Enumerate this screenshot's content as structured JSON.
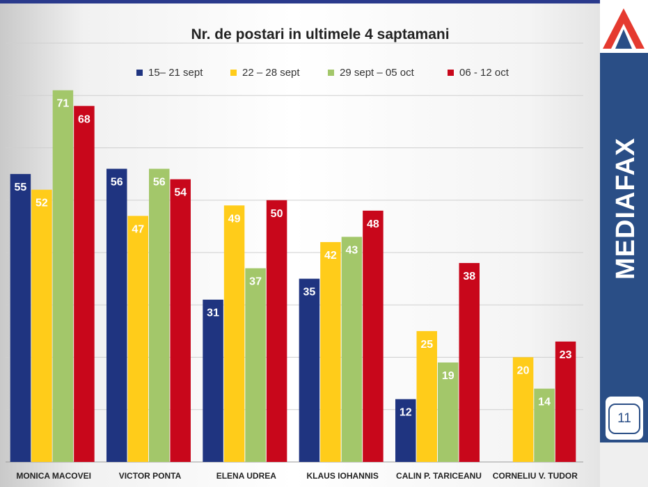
{
  "slide": {
    "brand": "MEDIAFAX",
    "page_number": "11"
  },
  "chart_data": {
    "type": "bar",
    "title": "Nr. de postari in ultimele 4 saptamani",
    "xlabel": "",
    "ylabel": "",
    "ylim": [
      0,
      80
    ],
    "grid": true,
    "legend_position": "top",
    "categories": [
      "MONICA  MACOVEI",
      "VICTOR PONTA",
      "ELENA UDREA",
      "KLAUS IOHANNIS",
      "CALIN P. TARICEANU",
      "CORNELIU  V. TUDOR"
    ],
    "series": [
      {
        "name": "15– 21 sept",
        "color": "#1f3480",
        "values": [
          55,
          56,
          31,
          35,
          12,
          null
        ]
      },
      {
        "name": "22 – 28 sept",
        "color": "#ffcc1a",
        "values": [
          52,
          47,
          49,
          42,
          25,
          20
        ]
      },
      {
        "name": "29 sept – 05 oct",
        "color": "#a3c76a",
        "values": [
          71,
          56,
          37,
          43,
          19,
          14
        ]
      },
      {
        "name": "06 - 12 oct",
        "color": "#c8071b",
        "values": [
          68,
          54,
          50,
          48,
          38,
          23
        ]
      }
    ]
  }
}
